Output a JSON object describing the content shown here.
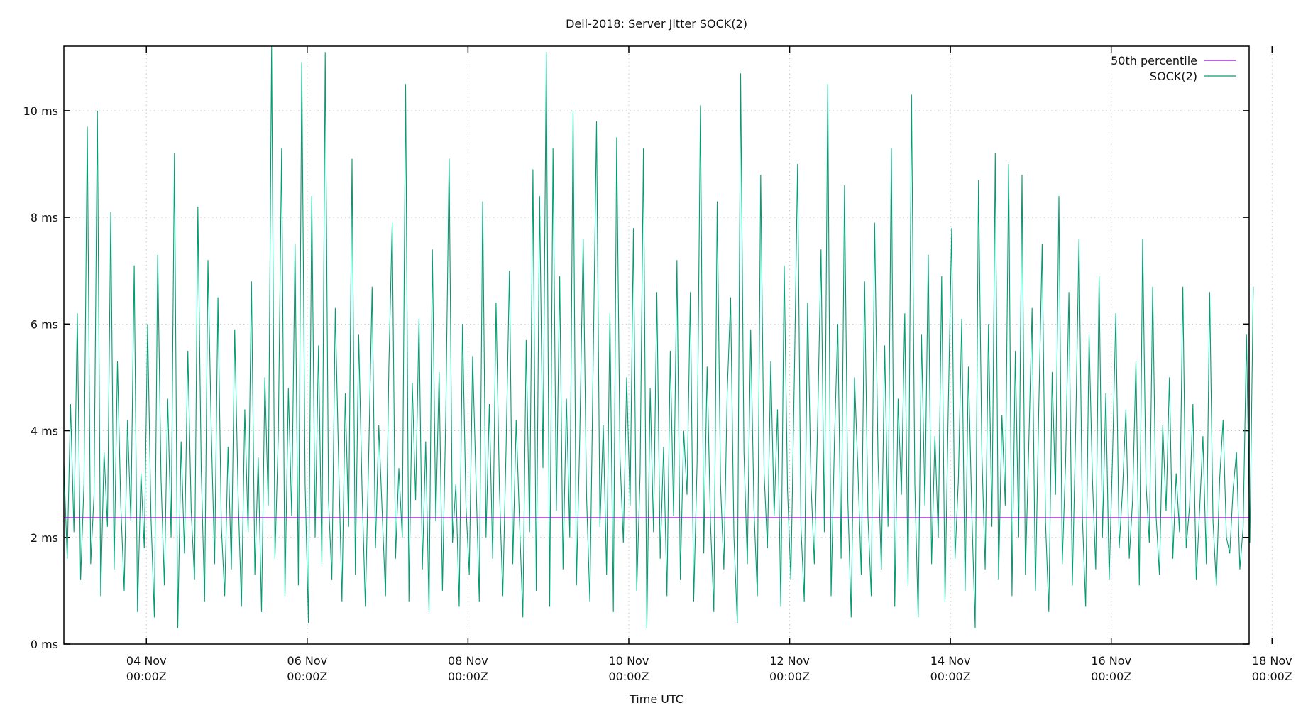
{
  "chart_data": {
    "type": "line",
    "title": "Dell-2018: Server Jitter SOCK(2)",
    "xlabel": "Time UTC",
    "ylabel": "",
    "x_units": "day of November 2018 (UTC)",
    "xlim": [
      2.974,
      17.715
    ],
    "ylim": [
      0,
      11.21
    ],
    "grid": true,
    "legend_position": "top-right",
    "x_ticks": [
      {
        "value": 4,
        "label": [
          "04 Nov",
          "00:00Z"
        ]
      },
      {
        "value": 6,
        "label": [
          "06 Nov",
          "00:00Z"
        ]
      },
      {
        "value": 8,
        "label": [
          "08 Nov",
          "00:00Z"
        ]
      },
      {
        "value": 10,
        "label": [
          "10 Nov",
          "00:00Z"
        ]
      },
      {
        "value": 12,
        "label": [
          "12 Nov",
          "00:00Z"
        ]
      },
      {
        "value": 14,
        "label": [
          "14 Nov",
          "00:00Z"
        ]
      },
      {
        "value": 16,
        "label": [
          "16 Nov",
          "00:00Z"
        ]
      },
      {
        "value": 18,
        "label": [
          "18 Nov",
          "00:00Z"
        ]
      }
    ],
    "y_ticks": [
      {
        "value": 0,
        "label": "0 ms"
      },
      {
        "value": 2,
        "label": "2 ms"
      },
      {
        "value": 4,
        "label": "4 ms"
      },
      {
        "value": 6,
        "label": "6 ms"
      },
      {
        "value": 8,
        "label": "8 ms"
      },
      {
        "value": 10,
        "label": "10 ms"
      }
    ],
    "series": [
      {
        "name": "50th percentile",
        "color": "#9400d3",
        "constant": 2.37
      },
      {
        "name": "SOCK(2)",
        "color": "#009e73",
        "x_start": 2.974,
        "x_step_days": 0.041667,
        "values": [
          3.4,
          1.6,
          4.5,
          2.1,
          6.2,
          1.2,
          3.0,
          9.7,
          1.5,
          2.8,
          10.0,
          0.9,
          3.6,
          2.2,
          8.1,
          1.4,
          5.3,
          2.6,
          1.0,
          4.2,
          2.3,
          7.1,
          0.6,
          3.2,
          1.8,
          6.0,
          2.4,
          0.5,
          7.3,
          3.1,
          1.1,
          4.6,
          2.0,
          9.2,
          0.3,
          3.8,
          1.7,
          5.5,
          2.5,
          1.2,
          8.2,
          3.3,
          0.8,
          7.2,
          4.0,
          1.5,
          6.5,
          2.2,
          0.9,
          3.7,
          1.4,
          5.9,
          2.8,
          0.7,
          4.4,
          2.1,
          6.8,
          1.3,
          3.5,
          0.6,
          5.0,
          2.6,
          11.2,
          1.6,
          3.9,
          9.3,
          0.9,
          4.8,
          2.4,
          7.5,
          1.1,
          10.9,
          3.0,
          0.4,
          8.4,
          2.0,
          5.6,
          1.5,
          11.1,
          2.7,
          1.2,
          6.3,
          3.4,
          0.8,
          4.7,
          2.2,
          9.1,
          1.3,
          5.8,
          2.9,
          0.7,
          3.6,
          6.7,
          1.8,
          4.1,
          2.5,
          0.9,
          5.2,
          7.9,
          1.6,
          3.3,
          2.0,
          10.5,
          0.8,
          4.9,
          2.7,
          6.1,
          1.4,
          3.8,
          0.6,
          7.4,
          2.3,
          5.1,
          1.0,
          4.3,
          9.1,
          1.9,
          3.0,
          0.7,
          6.0,
          2.6,
          1.3,
          5.4,
          3.1,
          0.8,
          8.3,
          2.0,
          4.5,
          1.6,
          6.4,
          2.9,
          0.9,
          3.7,
          7.0,
          1.5,
          4.2,
          2.3,
          0.5,
          5.7,
          2.1,
          8.9,
          1.0,
          8.4,
          3.3,
          11.1,
          0.7,
          9.3,
          2.5,
          6.9,
          1.4,
          4.6,
          2.0,
          10.0,
          1.1,
          3.9,
          7.6,
          2.8,
          0.8,
          5.3,
          9.8,
          2.2,
          4.1,
          1.3,
          6.2,
          0.6,
          9.5,
          3.5,
          1.9,
          5.0,
          2.6,
          7.8,
          1.0,
          3.2,
          9.3,
          0.3,
          4.8,
          2.1,
          6.6,
          1.6,
          3.7,
          0.9,
          5.5,
          2.4,
          7.2,
          1.2,
          4.0,
          2.8,
          6.6,
          0.8,
          3.4,
          10.1,
          1.7,
          5.2,
          2.3,
          0.6,
          8.3,
          3.0,
          1.4,
          4.7,
          6.5,
          2.0,
          0.4,
          10.7,
          3.6,
          1.5,
          5.9,
          2.5,
          0.9,
          8.8,
          3.2,
          1.8,
          5.3,
          2.4,
          4.4,
          0.7,
          7.1,
          2.9,
          1.2,
          4.9,
          9.0,
          2.2,
          0.8,
          6.4,
          3.0,
          1.5,
          4.2,
          7.4,
          2.1,
          10.5,
          0.9,
          3.8,
          6.0,
          1.6,
          8.6,
          2.7,
          0.5,
          5.0,
          3.3,
          1.3,
          6.8,
          2.4,
          0.9,
          7.9,
          3.5,
          1.4,
          5.6,
          2.2,
          9.3,
          0.7,
          4.6,
          2.8,
          6.2,
          1.1,
          10.3,
          3.0,
          0.5,
          5.8,
          2.6,
          7.3,
          1.5,
          3.9,
          2.0,
          6.9,
          0.8,
          4.5,
          7.8,
          1.6,
          3.1,
          6.1,
          1.0,
          5.2,
          2.5,
          0.3,
          8.7,
          3.6,
          1.4,
          6.0,
          2.2,
          9.2,
          1.2,
          4.3,
          2.6,
          9.0,
          0.9,
          5.5,
          2.0,
          8.8,
          1.3,
          3.7,
          6.3,
          1.0,
          4.4,
          7.5,
          2.3,
          0.6,
          5.1,
          2.8,
          8.4,
          1.5,
          3.4,
          6.6,
          1.1,
          4.0,
          7.6,
          2.4,
          0.7,
          5.8,
          3.1,
          1.4,
          6.9,
          2.0,
          4.7,
          1.2,
          3.5,
          6.2,
          1.8,
          2.9,
          4.4,
          1.6,
          2.7,
          5.3,
          1.1,
          7.6,
          3.0,
          1.9,
          6.7,
          2.4,
          1.3,
          4.1,
          2.5,
          5.0,
          1.6,
          3.2,
          2.1,
          6.7,
          1.8,
          2.6,
          4.5,
          1.2,
          2.5,
          3.9,
          1.5,
          6.6,
          2.3,
          1.1,
          3.1,
          4.2,
          2.0,
          1.7,
          2.9,
          3.6,
          1.4,
          2.2,
          5.8,
          1.9,
          6.7
        ]
      }
    ]
  }
}
